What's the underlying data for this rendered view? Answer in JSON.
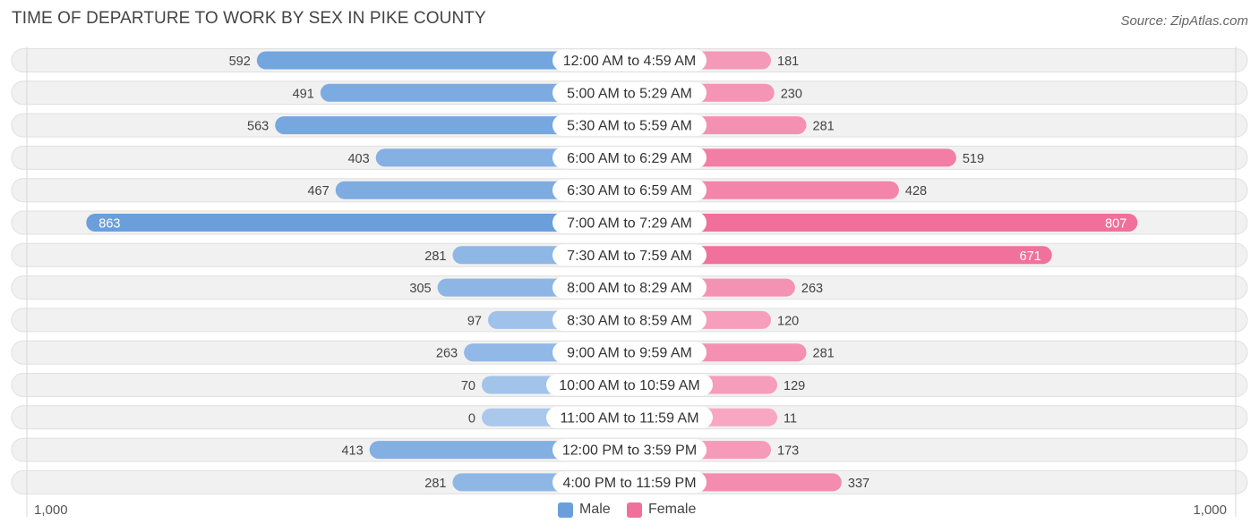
{
  "chart_data": {
    "type": "bar",
    "orientation": "horizontal-diverging",
    "title": "TIME OF DEPARTURE TO WORK BY SEX IN PIKE COUNTY",
    "source": "Source: ZipAtlas.com",
    "categories": [
      "12:00 AM to 4:59 AM",
      "5:00 AM to 5:29 AM",
      "5:30 AM to 5:59 AM",
      "6:00 AM to 6:29 AM",
      "6:30 AM to 6:59 AM",
      "7:00 AM to 7:29 AM",
      "7:30 AM to 7:59 AM",
      "8:00 AM to 8:29 AM",
      "8:30 AM to 8:59 AM",
      "9:00 AM to 9:59 AM",
      "10:00 AM to 10:59 AM",
      "11:00 AM to 11:59 AM",
      "12:00 PM to 3:59 PM",
      "4:00 PM to 11:59 PM"
    ],
    "series": [
      {
        "name": "Male",
        "values": [
          592,
          491,
          563,
          403,
          467,
          863,
          281,
          305,
          97,
          263,
          70,
          0,
          413,
          281
        ]
      },
      {
        "name": "Female",
        "values": [
          181,
          230,
          281,
          519,
          428,
          807,
          671,
          263,
          120,
          281,
          129,
          11,
          173,
          337
        ]
      }
    ],
    "xlim": [
      -1000,
      1000
    ],
    "axis_tick_left": "1,000",
    "axis_tick_right": "1,000",
    "legend_position": "bottom-center",
    "colors": {
      "male": "#6a9fdc",
      "male_light": "#a9c8ec",
      "female": "#f06f9b",
      "female_light": "#f7a8c3",
      "row_background": "#f1f1f1",
      "row_border": "#e0e0e0"
    }
  }
}
